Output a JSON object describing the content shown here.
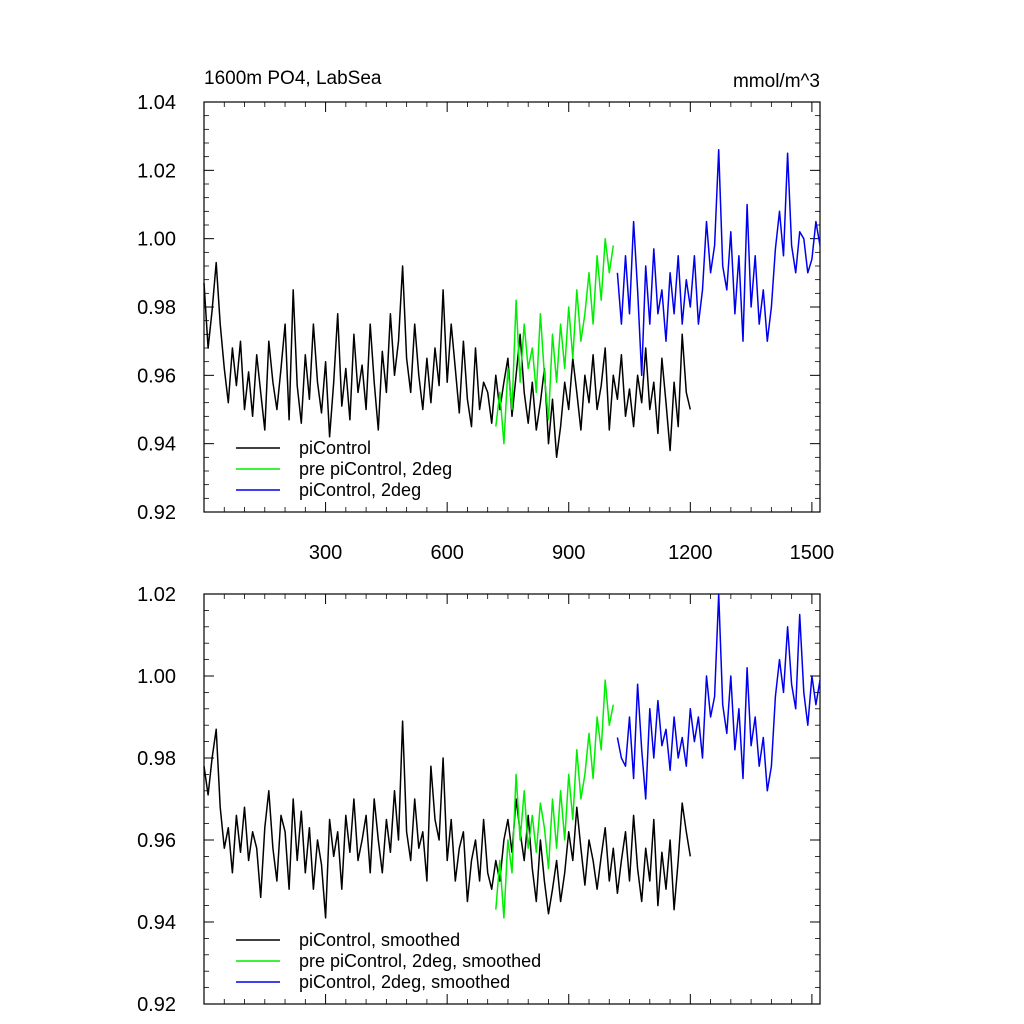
{
  "chart_data": [
    {
      "type": "line",
      "title": "1600m PO4, LabSea",
      "units": "mmol/m^3",
      "xlim": [
        0,
        1520
      ],
      "ylim": [
        0.92,
        1.04
      ],
      "xticks": [
        300,
        600,
        900,
        1200,
        1500
      ],
      "xtick_labels": [
        "300",
        "600",
        "900",
        "1200",
        "1500"
      ],
      "yticks": [
        0.92,
        0.94,
        0.96,
        0.98,
        1.0,
        1.02,
        1.04
      ],
      "ytick_labels": [
        "0.92",
        "0.94",
        "0.96",
        "0.98",
        "1.00",
        "1.02",
        "1.04"
      ],
      "grid": false,
      "legend_position": "bottom-left",
      "series": [
        {
          "name": "piControl",
          "color": "#000000",
          "x": [
            0,
            10,
            20,
            30,
            40,
            50,
            60,
            70,
            80,
            90,
            100,
            110,
            120,
            130,
            140,
            150,
            160,
            170,
            180,
            190,
            200,
            210,
            220,
            230,
            240,
            250,
            260,
            270,
            280,
            290,
            300,
            310,
            320,
            330,
            340,
            350,
            360,
            370,
            380,
            390,
            400,
            410,
            420,
            430,
            440,
            450,
            460,
            470,
            480,
            490,
            500,
            510,
            520,
            530,
            540,
            550,
            560,
            570,
            580,
            590,
            600,
            610,
            620,
            630,
            640,
            650,
            660,
            670,
            680,
            690,
            700,
            710,
            720,
            730,
            740,
            750,
            760,
            770,
            780,
            790,
            800,
            810,
            820,
            830,
            840,
            850,
            860,
            870,
            880,
            890,
            900,
            910,
            920,
            930,
            940,
            950,
            960,
            970,
            980,
            990,
            1000,
            1010,
            1020,
            1030,
            1040,
            1050,
            1060,
            1070,
            1080,
            1090,
            1100,
            1110,
            1120,
            1130,
            1140,
            1150,
            1160,
            1170,
            1180,
            1190,
            1200
          ],
          "values": [
            0.987,
            0.968,
            0.979,
            0.993,
            0.975,
            0.962,
            0.952,
            0.968,
            0.957,
            0.97,
            0.95,
            0.961,
            0.948,
            0.966,
            0.955,
            0.944,
            0.97,
            0.958,
            0.95,
            0.962,
            0.975,
            0.947,
            0.985,
            0.957,
            0.946,
            0.966,
            0.953,
            0.975,
            0.958,
            0.949,
            0.964,
            0.942,
            0.958,
            0.978,
            0.951,
            0.962,
            0.947,
            0.972,
            0.955,
            0.963,
            0.95,
            0.975,
            0.958,
            0.944,
            0.967,
            0.955,
            0.978,
            0.96,
            0.97,
            0.992,
            0.965,
            0.955,
            0.975,
            0.96,
            0.95,
            0.965,
            0.952,
            0.968,
            0.957,
            0.985,
            0.958,
            0.975,
            0.962,
            0.949,
            0.97,
            0.953,
            0.945,
            0.968,
            0.95,
            0.958,
            0.955,
            0.946,
            0.96,
            0.95,
            0.958,
            0.965,
            0.948,
            0.96,
            0.972,
            0.955,
            0.946,
            0.958,
            0.944,
            0.952,
            0.962,
            0.94,
            0.953,
            0.936,
            0.945,
            0.958,
            0.95,
            0.965,
            0.955,
            0.944,
            0.96,
            0.952,
            0.966,
            0.95,
            0.957,
            0.968,
            0.944,
            0.96,
            0.953,
            0.966,
            0.948,
            0.956,
            0.945,
            0.96,
            0.952,
            0.968,
            0.95,
            0.958,
            0.943,
            0.965,
            0.952,
            0.938,
            0.958,
            0.945,
            0.972,
            0.955,
            0.95
          ]
        },
        {
          "name": "pre piControl, 2deg",
          "color": "#00ee00",
          "x": [
            720,
            730,
            740,
            750,
            760,
            770,
            780,
            790,
            800,
            810,
            820,
            830,
            840,
            850,
            860,
            870,
            880,
            890,
            900,
            910,
            920,
            930,
            940,
            950,
            960,
            970,
            980,
            990,
            1000,
            1010
          ],
          "values": [
            0.945,
            0.955,
            0.94,
            0.962,
            0.95,
            0.982,
            0.958,
            0.975,
            0.962,
            0.968,
            0.955,
            0.978,
            0.96,
            0.947,
            0.972,
            0.958,
            0.975,
            0.962,
            0.98,
            0.965,
            0.985,
            0.97,
            0.978,
            0.99,
            0.975,
            0.995,
            0.982,
            1.0,
            0.99,
            0.998
          ]
        },
        {
          "name": "piControl, 2deg",
          "color": "#0000ee",
          "x": [
            1020,
            1030,
            1040,
            1050,
            1060,
            1070,
            1080,
            1090,
            1100,
            1110,
            1120,
            1130,
            1140,
            1150,
            1160,
            1170,
            1180,
            1190,
            1200,
            1210,
            1220,
            1230,
            1240,
            1250,
            1260,
            1270,
            1280,
            1290,
            1300,
            1310,
            1320,
            1330,
            1340,
            1350,
            1360,
            1370,
            1380,
            1390,
            1400,
            1410,
            1420,
            1430,
            1440,
            1450,
            1460,
            1470,
            1480,
            1490,
            1500,
            1510,
            1520
          ],
          "values": [
            0.99,
            0.975,
            0.995,
            0.978,
            1.005,
            0.985,
            0.96,
            0.992,
            0.975,
            0.997,
            0.978,
            0.985,
            0.97,
            0.99,
            0.978,
            0.995,
            0.975,
            0.988,
            0.98,
            0.995,
            0.975,
            0.985,
            1.005,
            0.99,
            0.998,
            1.026,
            0.992,
            0.985,
            1.002,
            0.978,
            0.995,
            0.97,
            1.01,
            0.98,
            0.995,
            0.975,
            0.985,
            0.97,
            0.98,
            0.997,
            1.008,
            0.995,
            1.025,
            0.998,
            0.99,
            1.002,
            1.0,
            0.99,
            0.994,
            1.005,
            0.998
          ]
        }
      ]
    },
    {
      "type": "line",
      "xlim": [
        0,
        1520
      ],
      "ylim": [
        0.92,
        1.02
      ],
      "xticks": [
        300,
        600,
        900,
        1200,
        1500
      ],
      "yticks": [
        0.92,
        0.94,
        0.96,
        0.98,
        1.0,
        1.02
      ],
      "ytick_labels": [
        "0.92",
        "0.94",
        "0.96",
        "0.98",
        "1.00",
        "1.02"
      ],
      "grid": false,
      "legend_position": "bottom-left",
      "series": [
        {
          "name": "piControl, smoothed",
          "color": "#000000",
          "x": [
            0,
            10,
            20,
            30,
            40,
            50,
            60,
            70,
            80,
            90,
            100,
            110,
            120,
            130,
            140,
            150,
            160,
            170,
            180,
            190,
            200,
            210,
            220,
            230,
            240,
            250,
            260,
            270,
            280,
            290,
            300,
            310,
            320,
            330,
            340,
            350,
            360,
            370,
            380,
            390,
            400,
            410,
            420,
            430,
            440,
            450,
            460,
            470,
            480,
            490,
            500,
            510,
            520,
            530,
            540,
            550,
            560,
            570,
            580,
            590,
            600,
            610,
            620,
            630,
            640,
            650,
            660,
            670,
            680,
            690,
            700,
            710,
            720,
            730,
            740,
            750,
            760,
            770,
            780,
            790,
            800,
            810,
            820,
            830,
            840,
            850,
            860,
            870,
            880,
            890,
            900,
            910,
            920,
            930,
            940,
            950,
            960,
            970,
            980,
            990,
            1000,
            1010,
            1020,
            1030,
            1040,
            1050,
            1060,
            1070,
            1080,
            1090,
            1100,
            1110,
            1120,
            1130,
            1140,
            1150,
            1160,
            1170,
            1180,
            1190,
            1200
          ],
          "values": [
            0.978,
            0.971,
            0.98,
            0.987,
            0.968,
            0.958,
            0.963,
            0.952,
            0.966,
            0.957,
            0.968,
            0.955,
            0.962,
            0.958,
            0.946,
            0.963,
            0.972,
            0.958,
            0.95,
            0.966,
            0.962,
            0.948,
            0.97,
            0.955,
            0.967,
            0.952,
            0.963,
            0.948,
            0.96,
            0.954,
            0.941,
            0.965,
            0.956,
            0.962,
            0.948,
            0.966,
            0.957,
            0.97,
            0.955,
            0.96,
            0.966,
            0.952,
            0.97,
            0.96,
            0.952,
            0.965,
            0.957,
            0.972,
            0.96,
            0.989,
            0.962,
            0.955,
            0.97,
            0.958,
            0.962,
            0.95,
            0.978,
            0.965,
            0.96,
            0.98,
            0.955,
            0.965,
            0.95,
            0.958,
            0.962,
            0.945,
            0.955,
            0.96,
            0.95,
            0.965,
            0.952,
            0.948,
            0.955,
            0.95,
            0.96,
            0.965,
            0.957,
            0.97,
            0.962,
            0.955,
            0.966,
            0.953,
            0.945,
            0.96,
            0.95,
            0.942,
            0.948,
            0.955,
            0.945,
            0.952,
            0.962,
            0.955,
            0.968,
            0.958,
            0.949,
            0.96,
            0.955,
            0.948,
            0.956,
            0.963,
            0.95,
            0.958,
            0.947,
            0.955,
            0.962,
            0.95,
            0.966,
            0.953,
            0.945,
            0.958,
            0.95,
            0.965,
            0.944,
            0.957,
            0.948,
            0.96,
            0.943,
            0.955,
            0.969,
            0.962,
            0.956
          ]
        },
        {
          "name": "pre piControl, 2deg, smoothed",
          "color": "#00ee00",
          "x": [
            720,
            730,
            740,
            750,
            760,
            770,
            780,
            790,
            800,
            810,
            820,
            830,
            840,
            850,
            860,
            870,
            880,
            890,
            900,
            910,
            920,
            930,
            940,
            950,
            960,
            970,
            980,
            990,
            1000,
            1010
          ],
          "values": [
            0.943,
            0.955,
            0.941,
            0.96,
            0.952,
            0.976,
            0.96,
            0.972,
            0.958,
            0.966,
            0.957,
            0.969,
            0.963,
            0.953,
            0.97,
            0.958,
            0.972,
            0.96,
            0.976,
            0.965,
            0.982,
            0.97,
            0.976,
            0.986,
            0.975,
            0.99,
            0.982,
            0.999,
            0.988,
            0.993
          ]
        },
        {
          "name": "piControl, 2deg, smoothed",
          "color": "#0000ee",
          "x": [
            1020,
            1030,
            1040,
            1050,
            1060,
            1070,
            1080,
            1090,
            1100,
            1110,
            1120,
            1130,
            1140,
            1150,
            1160,
            1170,
            1180,
            1190,
            1200,
            1210,
            1220,
            1230,
            1240,
            1250,
            1260,
            1270,
            1280,
            1290,
            1300,
            1310,
            1320,
            1330,
            1340,
            1350,
            1360,
            1370,
            1380,
            1390,
            1400,
            1410,
            1420,
            1430,
            1440,
            1450,
            1460,
            1470,
            1480,
            1490,
            1500,
            1510,
            1520
          ],
          "values": [
            0.985,
            0.98,
            0.978,
            0.99,
            0.975,
            0.998,
            0.982,
            0.97,
            0.992,
            0.98,
            0.994,
            0.983,
            0.987,
            0.977,
            0.99,
            0.98,
            0.985,
            0.978,
            0.992,
            0.984,
            0.99,
            0.98,
            1.0,
            0.99,
            0.995,
            1.02,
            0.993,
            0.986,
            1.0,
            0.982,
            0.992,
            0.975,
            1.002,
            0.983,
            0.99,
            0.978,
            0.985,
            0.972,
            0.978,
            0.995,
            1.004,
            0.996,
            1.012,
            0.998,
            0.992,
            1.015,
            0.996,
            0.988,
            1.0,
            0.993,
            0.999
          ]
        }
      ]
    }
  ]
}
